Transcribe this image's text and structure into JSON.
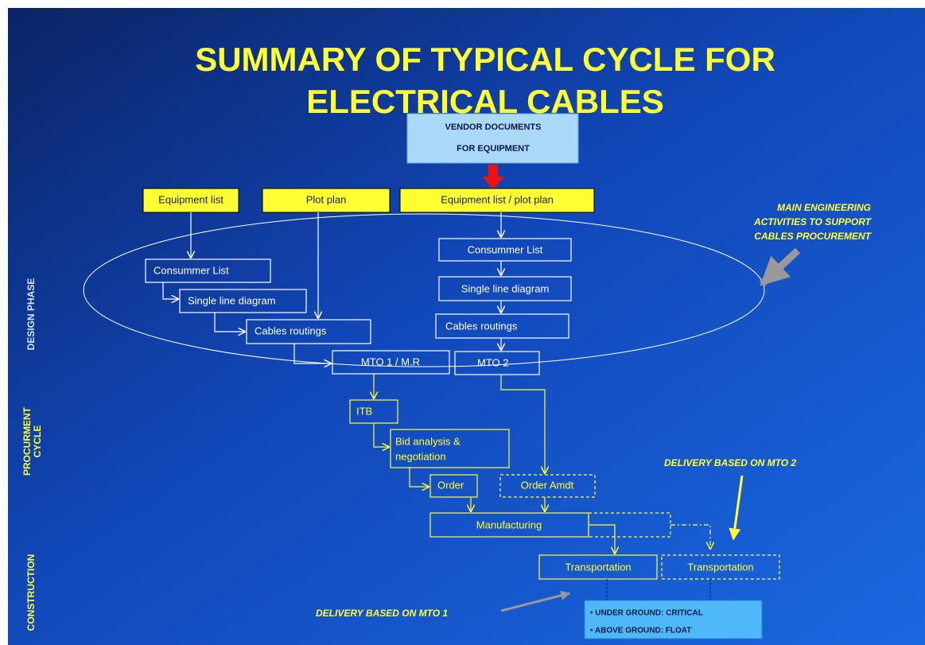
{
  "title": [
    "SUMMARY OF TYPICAL CYCLE FOR",
    "ELECTRICAL CABLES"
  ],
  "vendor_box": [
    "VENDOR DOCUMENTS",
    "FOR EQUIPMENT"
  ],
  "inputs": [
    "Equipment list",
    "Plot plan",
    "Equipment list /  plot plan"
  ],
  "engineering_note": [
    "MAIN ENGINEERING",
    "ACTIVITIES TO SUPPORT",
    "CABLES PROCUREMENT"
  ],
  "design_left": [
    "Consummer List",
    "Single line diagram",
    "Cables routings",
    "MTO 1 / M.R"
  ],
  "design_right": [
    "Consummer List",
    "Single line diagram",
    "Cables routings",
    "MTO 2"
  ],
  "procurement": [
    "ITB",
    [
      "Bid analysis &",
      "negotiation"
    ],
    "Order",
    "Order Amdt"
  ],
  "construction": [
    "Manufacturing",
    "Transportation",
    "Transportation"
  ],
  "annotations": [
    "DELIVERY BASED ON MTO 2",
    "DELIVERY BASED ON MTO 1"
  ],
  "note_box": [
    "• UNDER GROUND: CRITICAL",
    "• ABOVE GROUND: FLOAT"
  ],
  "phases": [
    "DESIGN PHASE",
    [
      "PROCURMENT",
      "CYCLE"
    ],
    "CONSTRUCTION"
  ]
}
